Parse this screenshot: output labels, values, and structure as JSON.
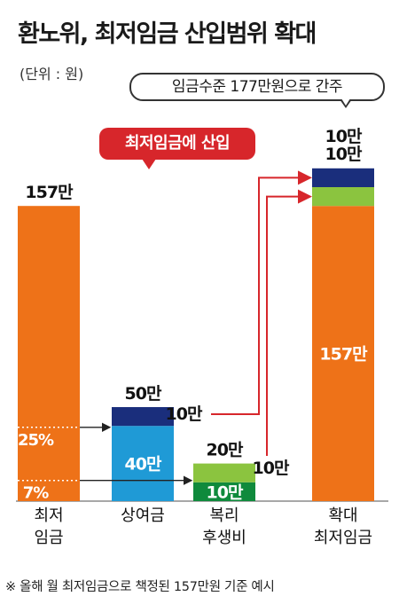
{
  "title": "환노위, 최저임금 산입범위 확대",
  "unit": "(단위 : 원)",
  "callout": "임금수준 177만원으로 간주",
  "badge": "최저임금에 산입",
  "footnote": "※ 올해 월 최저임금으로 책정된 157만원 기준 예시",
  "colors": {
    "orange": "#ee7218",
    "blue": "#1f9ad6",
    "navy": "#1a2e7c",
    "lightgreen": "#8bc43f",
    "green": "#0f8a3c",
    "red": "#d7262b",
    "gray": "#8c8c8c"
  },
  "chart_data": {
    "type": "bar",
    "categories": [
      "최저\n임금",
      "상여금",
      "복리\n후생비",
      "확대\n최저임금"
    ],
    "bars": [
      {
        "category": "최저\n임금",
        "total_label": "157만",
        "segments": [
          {
            "value": 157,
            "color": "orange",
            "label": ""
          }
        ],
        "annotations": [
          {
            "text": "25%",
            "at": 39.25
          },
          {
            "text": "7%",
            "at": 11
          }
        ]
      },
      {
        "category": "상여금",
        "total_label": "50만",
        "segments": [
          {
            "value": 40,
            "color": "blue",
            "label": "40만"
          },
          {
            "value": 10,
            "color": "navy",
            "label": ""
          }
        ]
      },
      {
        "category": "복리\n후생비",
        "total_label": "20만",
        "segments": [
          {
            "value": 10,
            "color": "green",
            "label": "10만"
          },
          {
            "value": 10,
            "color": "lightgreen",
            "label": ""
          }
        ]
      },
      {
        "category": "확대\n최저임금",
        "total_label": "",
        "segments": [
          {
            "value": 157,
            "color": "orange",
            "label": "157만"
          },
          {
            "value": 10,
            "color": "lightgreen",
            "label": ""
          },
          {
            "value": 10,
            "color": "navy",
            "label": ""
          }
        ],
        "top_labels": [
          "10만",
          "10만"
        ]
      }
    ],
    "flows": [
      {
        "label": "10만",
        "from": "상여금",
        "to_segment": "navy"
      },
      {
        "label": "10만",
        "from": "복리\n후생비",
        "to_segment": "lightgreen"
      }
    ],
    "ylim": [
      0,
      177
    ]
  }
}
